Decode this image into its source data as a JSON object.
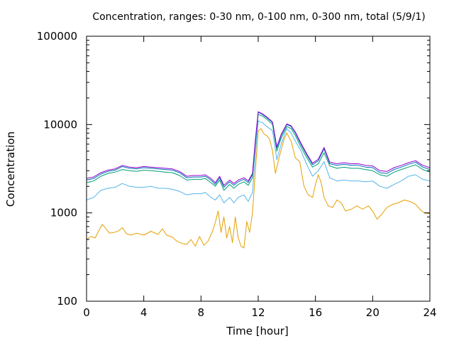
{
  "chart_data": {
    "type": "line",
    "title": "Concentration, ranges: 0-30 nm, 0-100 nm, 0-300 nm, total (5/9/1)",
    "xlabel": "Time [hour]",
    "ylabel": "Concentration",
    "xlim": [
      0,
      24
    ],
    "ylim": [
      100,
      100000
    ],
    "yscale": "log",
    "xticks": [
      0,
      4,
      8,
      12,
      16,
      20,
      24
    ],
    "yticks": [
      100,
      1000,
      10000,
      100000
    ],
    "ytick_labels": [
      "100",
      "1000",
      "10000",
      "100000"
    ],
    "grid": false,
    "legend": "none",
    "series": [
      {
        "color": "#e69f00",
        "x": [
          0,
          0.3,
          0.6,
          0.9,
          1.1,
          1.3,
          1.6,
          1.9,
          2.2,
          2.5,
          2.8,
          3.1,
          3.5,
          4.0,
          4.5,
          5.0,
          5.3,
          5.6,
          6.0,
          6.3,
          6.7,
          7.0,
          7.3,
          7.6,
          7.9,
          8.2,
          8.5,
          8.8,
          9.0,
          9.2,
          9.4,
          9.6,
          9.8,
          10.0,
          10.2,
          10.4,
          10.6,
          10.8,
          11.0,
          11.2,
          11.4,
          11.6,
          11.8,
          12.0,
          12.2,
          12.4,
          12.6,
          12.8,
          13.0,
          13.2,
          13.5,
          13.8,
          14.0,
          14.3,
          14.6,
          14.9,
          15.2,
          15.5,
          15.8,
          16.0,
          16.2,
          16.4,
          16.6,
          16.9,
          17.2,
          17.5,
          17.8,
          18.1,
          18.5,
          18.9,
          19.3,
          19.7,
          20.0,
          20.3,
          20.6,
          21.0,
          21.4,
          21.8,
          22.2,
          22.6,
          23.0,
          23.3,
          23.6,
          24.0
        ],
        "values": [
          500,
          540,
          520,
          650,
          740,
          680,
          590,
          600,
          620,
          680,
          580,
          560,
          590,
          560,
          620,
          570,
          660,
          560,
          530,
          480,
          450,
          440,
          500,
          420,
          540,
          430,
          480,
          620,
          780,
          1050,
          600,
          900,
          520,
          700,
          460,
          900,
          520,
          420,
          400,
          800,
          600,
          1000,
          3000,
          8500,
          9000,
          7800,
          7500,
          6800,
          5000,
          2800,
          4500,
          6800,
          8000,
          6500,
          4200,
          3800,
          2000,
          1600,
          1500,
          2100,
          2700,
          2200,
          1500,
          1200,
          1150,
          1400,
          1300,
          1050,
          1100,
          1200,
          1100,
          1200,
          1050,
          850,
          950,
          1150,
          1250,
          1300,
          1400,
          1350,
          1250,
          1100,
          1000,
          980
        ]
      },
      {
        "color": "#56b4e9",
        "x": [
          0,
          0.5,
          1.0,
          1.5,
          2.0,
          2.5,
          3.0,
          3.5,
          4.0,
          4.5,
          5.0,
          5.5,
          6.0,
          6.5,
          7.0,
          7.5,
          8.0,
          8.3,
          8.7,
          9.0,
          9.3,
          9.6,
          10.0,
          10.3,
          10.6,
          11.0,
          11.3,
          11.6,
          11.8,
          12.0,
          12.3,
          12.6,
          13.0,
          13.3,
          13.6,
          14.0,
          14.3,
          14.6,
          15.0,
          15.4,
          15.8,
          16.2,
          16.6,
          17.0,
          17.5,
          18.0,
          18.5,
          19.0,
          19.5,
          20.0,
          20.5,
          21.0,
          21.5,
          22.0,
          22.5,
          23.0,
          23.5,
          24.0
        ],
        "values": [
          1400,
          1500,
          1800,
          1900,
          1950,
          2150,
          2000,
          1950,
          1950,
          2000,
          1900,
          1900,
          1850,
          1750,
          1600,
          1650,
          1650,
          1700,
          1500,
          1400,
          1600,
          1300,
          1500,
          1300,
          1500,
          1600,
          1350,
          1700,
          4500,
          11000,
          10500,
          9500,
          8500,
          4000,
          6000,
          9000,
          8000,
          6500,
          5000,
          3500,
          2600,
          3000,
          3800,
          2500,
          2300,
          2350,
          2300,
          2300,
          2250,
          2300,
          2000,
          1900,
          2100,
          2300,
          2600,
          2700,
          2400,
          2300
        ]
      },
      {
        "color": "#009e73",
        "x": [
          0,
          0.5,
          1.0,
          1.5,
          2.0,
          2.5,
          3.0,
          3.5,
          4.0,
          4.5,
          5.0,
          5.5,
          6.0,
          6.5,
          7.0,
          7.5,
          8.0,
          8.3,
          8.7,
          9.0,
          9.3,
          9.6,
          10.0,
          10.3,
          10.6,
          11.0,
          11.3,
          11.6,
          11.8,
          12.0,
          12.3,
          12.6,
          13.0,
          13.3,
          13.6,
          14.0,
          14.3,
          14.6,
          15.0,
          15.4,
          15.8,
          16.2,
          16.6,
          17.0,
          17.5,
          18.0,
          18.5,
          19.0,
          19.5,
          20.0,
          20.5,
          21.0,
          21.5,
          22.0,
          22.5,
          23.0,
          23.5,
          24.0
        ],
        "values": [
          2200,
          2300,
          2600,
          2800,
          2900,
          3100,
          3000,
          2950,
          3050,
          3000,
          2950,
          2900,
          2850,
          2650,
          2350,
          2400,
          2400,
          2450,
          2200,
          2000,
          2350,
          1800,
          2100,
          1900,
          2100,
          2250,
          2050,
          2500,
          6000,
          13000,
          12500,
          11500,
          10000,
          5000,
          7000,
          9500,
          9000,
          7500,
          5500,
          4200,
          3300,
          3600,
          4800,
          3400,
          3200,
          3300,
          3200,
          3200,
          3100,
          3000,
          2700,
          2600,
          2900,
          3100,
          3300,
          3500,
          3100,
          2900
        ]
      },
      {
        "color": "#0072b2",
        "x": [
          0,
          0.5,
          1.0,
          1.5,
          2.0,
          2.5,
          3.0,
          3.5,
          4.0,
          4.5,
          5.0,
          5.5,
          6.0,
          6.5,
          7.0,
          7.5,
          8.0,
          8.3,
          8.7,
          9.0,
          9.3,
          9.6,
          10.0,
          10.3,
          10.6,
          11.0,
          11.3,
          11.6,
          11.8,
          12.0,
          12.3,
          12.6,
          13.0,
          13.3,
          13.6,
          14.0,
          14.3,
          14.6,
          15.0,
          15.4,
          15.8,
          16.2,
          16.6,
          17.0,
          17.5,
          18.0,
          18.5,
          19.0,
          19.5,
          20.0,
          20.5,
          21.0,
          21.5,
          22.0,
          22.5,
          23.0,
          23.5,
          24.0
        ],
        "values": [
          2350,
          2450,
          2750,
          2950,
          3050,
          3350,
          3200,
          3150,
          3250,
          3200,
          3150,
          3100,
          3050,
          2850,
          2500,
          2550,
          2550,
          2600,
          2350,
          2100,
          2500,
          1950,
          2250,
          2050,
          2250,
          2400,
          2200,
          2700,
          6500,
          13800,
          13000,
          12000,
          10500,
          5400,
          7500,
          10000,
          9500,
          8000,
          5900,
          4500,
          3500,
          3900,
          5300,
          3600,
          3450,
          3550,
          3450,
          3450,
          3300,
          3250,
          2850,
          2800,
          3100,
          3300,
          3550,
          3750,
          3300,
          3100
        ]
      },
      {
        "color": "#9400d3",
        "x": [
          0,
          0.5,
          1.0,
          1.5,
          2.0,
          2.5,
          3.0,
          3.5,
          4.0,
          4.5,
          5.0,
          5.5,
          6.0,
          6.5,
          7.0,
          7.5,
          8.0,
          8.3,
          8.7,
          9.0,
          9.3,
          9.6,
          10.0,
          10.3,
          10.6,
          11.0,
          11.3,
          11.6,
          11.8,
          12.0,
          12.3,
          12.6,
          13.0,
          13.3,
          13.6,
          14.0,
          14.3,
          14.6,
          15.0,
          15.4,
          15.8,
          16.2,
          16.6,
          17.0,
          17.5,
          18.0,
          18.5,
          19.0,
          19.5,
          20.0,
          20.5,
          21.0,
          21.5,
          22.0,
          22.5,
          23.0,
          23.5,
          24.0
        ],
        "values": [
          2450,
          2550,
          2850,
          3050,
          3150,
          3450,
          3300,
          3250,
          3350,
          3300,
          3250,
          3200,
          3150,
          2950,
          2600,
          2650,
          2650,
          2700,
          2450,
          2200,
          2600,
          2050,
          2350,
          2150,
          2350,
          2500,
          2300,
          2800,
          6700,
          14000,
          13200,
          12200,
          10700,
          5600,
          7700,
          10200,
          9700,
          8200,
          6100,
          4650,
          3650,
          4050,
          5500,
          3750,
          3600,
          3700,
          3600,
          3600,
          3450,
          3400,
          3000,
          2950,
          3250,
          3450,
          3700,
          3900,
          3450,
          3250
        ]
      }
    ]
  }
}
